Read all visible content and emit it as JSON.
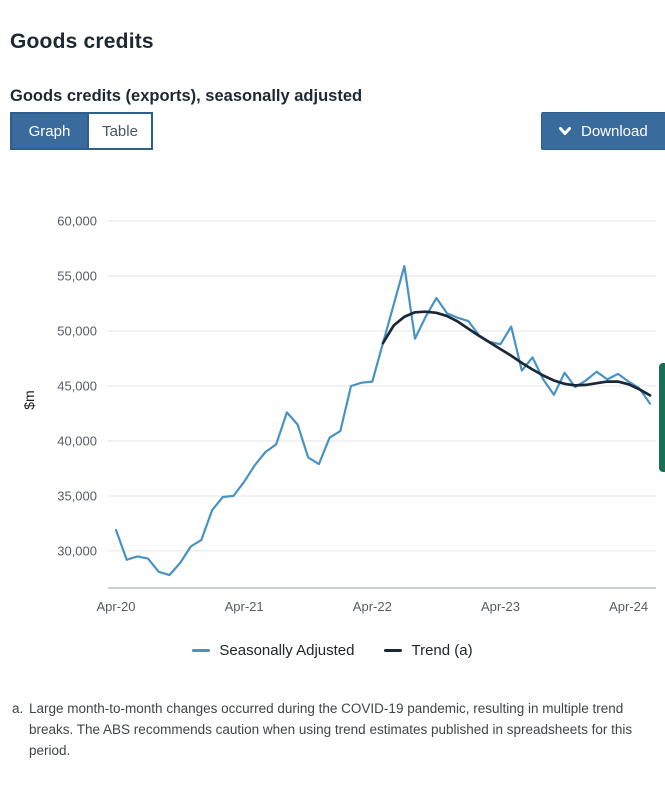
{
  "page": {
    "title": "Goods credits",
    "subtitle": "Goods credits (exports), seasonally adjusted"
  },
  "toolbar": {
    "graph_label": "Graph",
    "table_label": "Table",
    "download_label": "Download"
  },
  "colors": {
    "accent_blue": "#3a6b9d",
    "accent_border": "#2d5f8e",
    "sa_line": "#4793c4",
    "trend_line": "#1a2738",
    "feedback_tab_green": "#1a6e58",
    "gridline": "#e4e6e7"
  },
  "chart_data": {
    "type": "line",
    "title": "",
    "xlabel": "",
    "ylabel": "$m",
    "grid": "horizontal",
    "legend_position": "bottom",
    "ylim": [
      26630,
      60000
    ],
    "y_ticks": [
      30000,
      35000,
      40000,
      45000,
      50000,
      55000,
      60000
    ],
    "y_tick_labels": [
      "30,000",
      "35,000",
      "40,000",
      "45,000",
      "50,000",
      "55,000",
      "60,000"
    ],
    "x": [
      "Apr-20",
      "May-20",
      "Jun-20",
      "Jul-20",
      "Aug-20",
      "Sep-20",
      "Oct-20",
      "Nov-20",
      "Dec-20",
      "Jan-21",
      "Feb-21",
      "Mar-21",
      "Apr-21",
      "May-21",
      "Jun-21",
      "Jul-21",
      "Aug-21",
      "Sep-21",
      "Oct-21",
      "Nov-21",
      "Dec-21",
      "Jan-22",
      "Feb-22",
      "Mar-22",
      "Apr-22",
      "May-22",
      "Jun-22",
      "Jul-22",
      "Aug-22",
      "Sep-22",
      "Oct-22",
      "Nov-22",
      "Dec-22",
      "Jan-23",
      "Feb-23",
      "Mar-23",
      "Apr-23",
      "May-23",
      "Jun-23",
      "Jul-23",
      "Aug-23",
      "Sep-23",
      "Oct-23",
      "Nov-23",
      "Dec-23",
      "Jan-24",
      "Feb-24",
      "Mar-24",
      "Apr-24",
      "May-24",
      "Jun-24"
    ],
    "x_tick_indices": [
      0,
      12,
      24,
      36,
      48
    ],
    "x_tick_labels": [
      "Apr-20",
      "Apr-21",
      "Apr-22",
      "Apr-23",
      "Apr-24"
    ],
    "series": [
      {
        "name": "Seasonally Adjusted",
        "color": "#4793c4",
        "stroke_width": 2.2,
        "start_index": 0,
        "values": [
          31900,
          29200,
          29500,
          29300,
          28100,
          27800,
          28900,
          30400,
          31000,
          33700,
          34900,
          35000,
          36300,
          37800,
          39000,
          39700,
          42600,
          41500,
          38500,
          37900,
          40300,
          40900,
          45000,
          45300,
          45400,
          48900,
          52400,
          55900,
          49300,
          51300,
          53000,
          51600,
          51200,
          50900,
          49600,
          49000,
          48800,
          50400,
          46400,
          47600,
          45600,
          44200,
          46200,
          44900,
          45500,
          46300,
          45600,
          46100,
          45400,
          44800,
          43400
        ]
      },
      {
        "name": "Trend (a)",
        "color": "#1a2738",
        "stroke_width": 2.7,
        "start_index": 25,
        "values": [
          48900,
          50500,
          51300,
          51700,
          51750,
          51650,
          51350,
          50850,
          50200,
          49550,
          48950,
          48350,
          47750,
          47100,
          46500,
          45950,
          45500,
          45200,
          45050,
          45100,
          45250,
          45400,
          45400,
          45150,
          44700,
          44150
        ]
      }
    ]
  },
  "footnote": {
    "marker": "a.",
    "text": "Large month-to-month changes occurred during the COVID-19 pandemic, resulting in multiple trend breaks. The ABS recommends caution when using trend estimates published in spreadsheets for this period."
  }
}
